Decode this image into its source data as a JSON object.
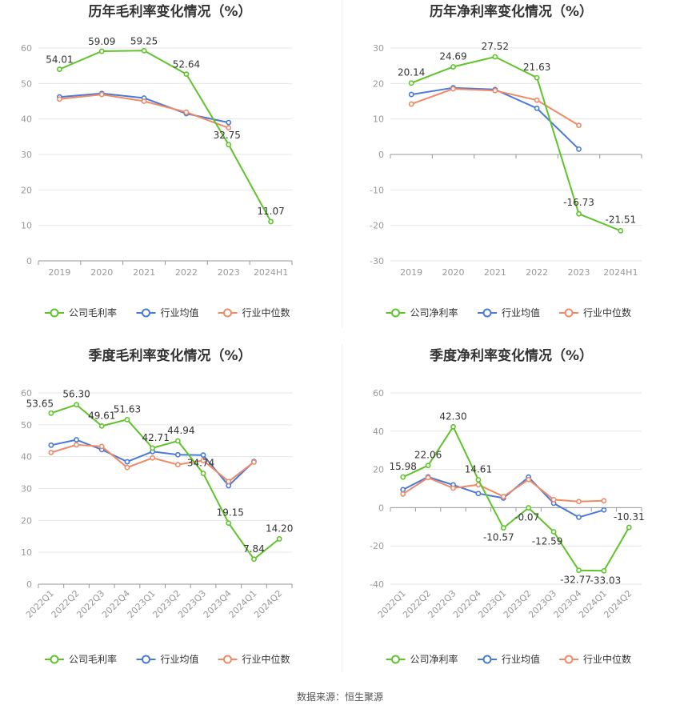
{
  "source": "数据来源：恒生聚源",
  "colors": {
    "company": "#5fc42b",
    "avg": "#4a7ad8",
    "median": "#ef8a67",
    "grid": "#e6e6e6",
    "axis": "#999999"
  },
  "chart_data": [
    {
      "type": "line",
      "title": "历年毛利率变化情况（%）",
      "categories": [
        "2019",
        "2020",
        "2021",
        "2022",
        "2023",
        "2024H1"
      ],
      "ylim": [
        0,
        60
      ],
      "yticks": [
        0,
        10,
        20,
        30,
        40,
        50,
        60
      ],
      "ytick_labels": [
        "0",
        "10",
        "20",
        "30",
        "40",
        "50",
        "60"
      ],
      "series": [
        {
          "name": "公司毛利率",
          "key": "company",
          "values": [
            54.01,
            59.09,
            59.25,
            52.64,
            32.75,
            11.07
          ],
          "labels": [
            "54.01",
            "59.09",
            "59.25",
            "52.64",
            "32.75",
            "11.07"
          ]
        },
        {
          "name": "行业均值",
          "key": "avg",
          "values": [
            46.2,
            47.2,
            45.9,
            41.5,
            39.0,
            null
          ]
        },
        {
          "name": "行业中位数",
          "key": "median",
          "values": [
            45.6,
            46.9,
            45.0,
            41.9,
            37.5,
            null
          ]
        }
      ]
    },
    {
      "type": "line",
      "title": "历年净利率变化情况（%）",
      "categories": [
        "2019",
        "2020",
        "2021",
        "2022",
        "2023",
        "2024H1"
      ],
      "ylim": [
        -30,
        30
      ],
      "yticks": [
        -30,
        -20,
        -10,
        0,
        10,
        20,
        30
      ],
      "ytick_labels": [
        "-30",
        "-20",
        "-10",
        "0",
        "10",
        "20",
        "30"
      ],
      "series": [
        {
          "name": "公司净利率",
          "key": "company",
          "values": [
            20.14,
            24.69,
            27.52,
            21.63,
            -16.73,
            -21.51
          ],
          "labels": [
            "20.14",
            "24.69",
            "27.52",
            "21.63",
            "-16.73",
            "-21.51"
          ]
        },
        {
          "name": "行业均值",
          "key": "avg",
          "values": [
            16.9,
            18.8,
            18.3,
            13.0,
            1.5,
            null
          ]
        },
        {
          "name": "行业中位数",
          "key": "median",
          "values": [
            14.2,
            18.5,
            18.0,
            15.3,
            8.2,
            null
          ]
        }
      ]
    },
    {
      "type": "line",
      "title": "季度毛利率变化情况（%）",
      "categories": [
        "2022Q1",
        "2022Q2",
        "2022Q3",
        "2022Q4",
        "2023Q1",
        "2023Q2",
        "2023Q3",
        "2023Q4",
        "2024Q1",
        "2024Q2"
      ],
      "ylim": [
        0,
        60
      ],
      "yticks": [
        0,
        10,
        20,
        30,
        40,
        50,
        60
      ],
      "ytick_labels": [
        "0",
        "10",
        "20",
        "30",
        "40",
        "50",
        "60"
      ],
      "series": [
        {
          "name": "公司毛利率",
          "key": "company",
          "values": [
            53.65,
            56.3,
            49.61,
            51.63,
            42.71,
            44.94,
            34.74,
            19.15,
            7.84,
            14.2
          ],
          "labels": [
            "53.65",
            "56.30",
            "49.61",
            "51.63",
            "42.71",
            "44.94",
            "34.74",
            "19.15",
            "7.84",
            "14.20"
          ]
        },
        {
          "name": "行业均值",
          "key": "avg",
          "values": [
            43.6,
            45.3,
            42.2,
            38.4,
            41.6,
            40.6,
            40.5,
            30.9,
            38.5,
            null
          ]
        },
        {
          "name": "行业中位数",
          "key": "median",
          "values": [
            41.3,
            43.7,
            43.2,
            36.6,
            39.6,
            37.5,
            38.8,
            32.2,
            38.3,
            null
          ]
        }
      ]
    },
    {
      "type": "line",
      "title": "季度净利率变化情况（%）",
      "categories": [
        "2022Q1",
        "2022Q2",
        "2022Q3",
        "2022Q4",
        "2023Q1",
        "2023Q2",
        "2023Q3",
        "2023Q4",
        "2024Q1",
        "2024Q2"
      ],
      "ylim": [
        -40,
        60
      ],
      "yticks": [
        -40,
        -20,
        0,
        20,
        40,
        60
      ],
      "ytick_labels": [
        "-40",
        "-20",
        "0",
        "20",
        "40",
        "60"
      ],
      "series": [
        {
          "name": "公司净利率",
          "key": "company",
          "values": [
            15.98,
            22.06,
            42.3,
            14.61,
            -10.57,
            -0.07,
            -12.59,
            -32.77,
            -33.03,
            -10.31
          ],
          "labels": [
            "15.98",
            "22.06",
            "42.30",
            "14.61",
            "-10.57",
            "-0.07",
            "-12.59",
            "-32.77",
            "-33.03",
            "-10.31"
          ]
        },
        {
          "name": "行业均值",
          "key": "avg",
          "values": [
            9.4,
            16.1,
            11.9,
            7.4,
            5.0,
            16.0,
            2.3,
            -5.0,
            -1.2,
            null
          ]
        },
        {
          "name": "行业中位数",
          "key": "median",
          "values": [
            7.1,
            15.7,
            10.2,
            12.0,
            5.8,
            14.7,
            4.2,
            3.2,
            3.6,
            null
          ]
        }
      ]
    }
  ]
}
